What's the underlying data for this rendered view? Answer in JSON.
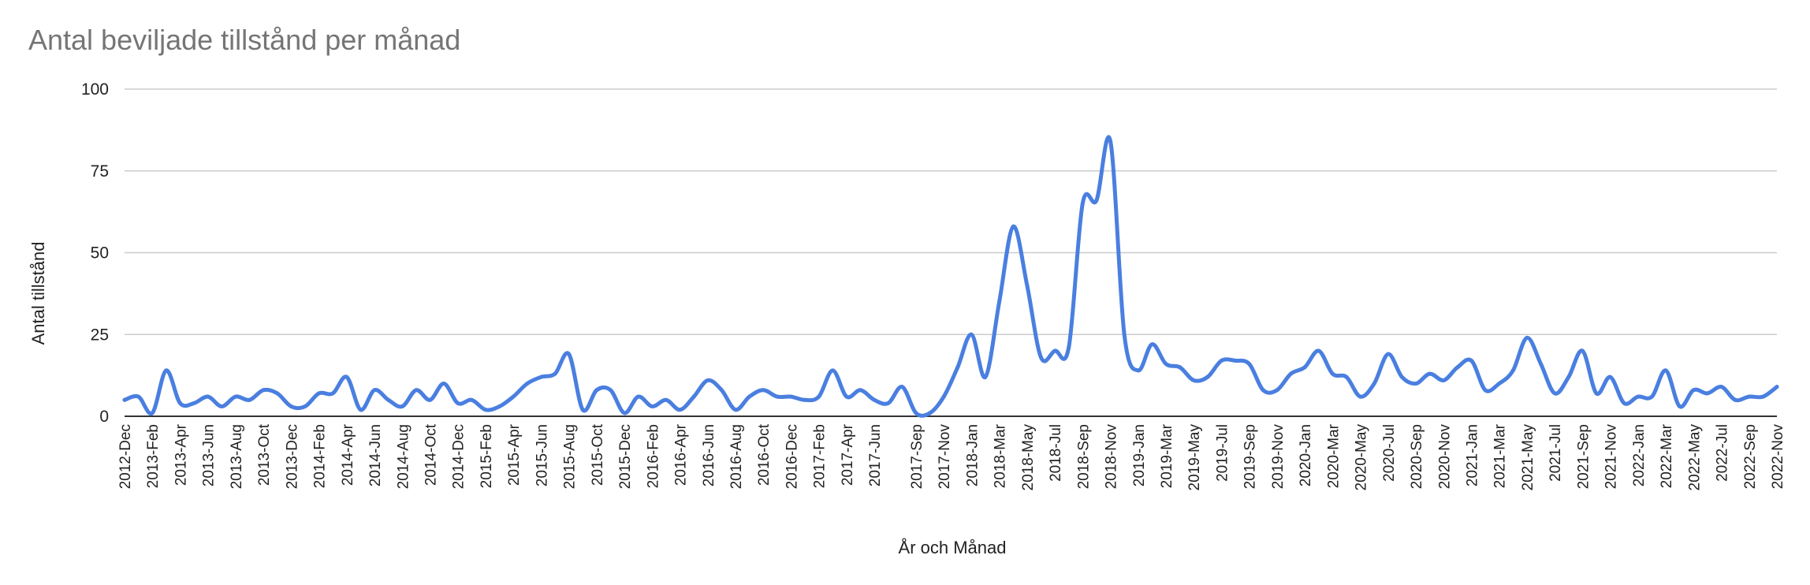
{
  "chart_data": {
    "type": "line",
    "title": "Antal beviljade tillstånd per månad",
    "xlabel": "År och Månad",
    "ylabel": "Antal tillstånd",
    "ylim": [
      0,
      100
    ],
    "yticks": [
      0,
      25,
      50,
      75,
      100
    ],
    "grid": true,
    "legend": "none",
    "x": [
      "2012-Dec",
      "2013-Jan",
      "2013-Feb",
      "2013-Mar",
      "2013-Apr",
      "2013-May",
      "2013-Jun",
      "2013-Jul",
      "2013-Aug",
      "2013-Sep",
      "2013-Oct",
      "2013-Nov",
      "2013-Dec",
      "2014-Jan",
      "2014-Feb",
      "2014-Mar",
      "2014-Apr",
      "2014-May",
      "2014-Jun",
      "2014-Jul",
      "2014-Aug",
      "2014-Sep",
      "2014-Oct",
      "2014-Nov",
      "2014-Dec",
      "2015-Jan",
      "2015-Feb",
      "2015-Mar",
      "2015-Apr",
      "2015-May",
      "2015-Jun",
      "2015-Jul",
      "2015-Aug",
      "2015-Sep",
      "2015-Oct",
      "2015-Nov",
      "2015-Dec",
      "2016-Jan",
      "2016-Feb",
      "2016-Mar",
      "2016-Apr",
      "2016-May",
      "2016-Jun",
      "2016-Jul",
      "2016-Aug",
      "2016-Sep",
      "2016-Oct",
      "2016-Nov",
      "2016-Dec",
      "2017-Jan",
      "2017-Feb",
      "2017-Mar",
      "2017-Apr",
      "2017-May",
      "2017-Jun",
      "2017-Jul",
      "2017-Aug",
      "2017-Sep",
      "2017-Oct",
      "2017-Nov",
      "2017-Dec",
      "2018-Jan",
      "2018-Feb",
      "2018-Mar",
      "2018-Apr",
      "2018-May",
      "2018-Jun",
      "2018-Jul",
      "2018-Aug",
      "2018-Sep",
      "2018-Oct",
      "2018-Nov",
      "2018-Dec",
      "2019-Jan",
      "2019-Feb",
      "2019-Mar",
      "2019-Apr",
      "2019-May",
      "2019-Jun",
      "2019-Jul",
      "2019-Aug",
      "2019-Sep",
      "2019-Oct",
      "2019-Nov",
      "2019-Dec",
      "2020-Jan",
      "2020-Feb",
      "2020-Mar",
      "2020-Apr",
      "2020-May",
      "2020-Jun",
      "2020-Jul",
      "2020-Aug",
      "2020-Sep",
      "2020-Oct",
      "2020-Nov",
      "2020-Dec",
      "2021-Jan",
      "2021-Feb",
      "2021-Mar",
      "2021-Apr",
      "2021-May",
      "2021-Jun",
      "2021-Jul",
      "2021-Aug",
      "2021-Sep",
      "2021-Oct",
      "2021-Nov",
      "2021-Dec",
      "2022-Jan",
      "2022-Feb",
      "2022-Mar",
      "2022-Apr",
      "2022-May",
      "2022-Jun",
      "2022-Jul",
      "2022-Aug",
      "2022-Sep",
      "2022-Oct",
      "2022-Nov"
    ],
    "x_tick_labels": [
      "2012-Dec",
      "2013-Feb",
      "2013-Apr",
      "2013-Jun",
      "2013-Aug",
      "2013-Oct",
      "2013-Dec",
      "2014-Feb",
      "2014-Apr",
      "2014-Jun",
      "2014-Aug",
      "2014-Oct",
      "2014-Dec",
      "2015-Feb",
      "2015-Apr",
      "2015-Jun",
      "2015-Aug",
      "2015-Oct",
      "2015-Dec",
      "2016-Feb",
      "2016-Apr",
      "2016-Jun",
      "2016-Aug",
      "2016-Oct",
      "2016-Dec",
      "2017-Feb",
      "2017-Apr",
      "2017-Jun",
      "2017-Sep",
      "2017-Nov",
      "2018-Jan",
      "2018-Mar",
      "2018-May",
      "2018-Jul",
      "2018-Sep",
      "2018-Nov",
      "2019-Jan",
      "2019-Mar",
      "2019-May",
      "2019-Jul",
      "2019-Sep",
      "2019-Nov",
      "2020-Jan",
      "2020-Mar",
      "2020-May",
      "2020-Jul",
      "2020-Sep",
      "2020-Nov",
      "2021-Jan",
      "2021-Mar",
      "2021-May",
      "2021-Jul",
      "2021-Sep",
      "2021-Nov",
      "2022-Jan",
      "2022-Mar",
      "2022-May",
      "2022-Jul",
      "2022-Sep",
      "2022-Nov"
    ],
    "series": [
      {
        "color": "#4a7fe0",
        "values": [
          5,
          6,
          1,
          14,
          4,
          4,
          6,
          3,
          6,
          5,
          8,
          7,
          3,
          3,
          7,
          7,
          12,
          2,
          8,
          5,
          3,
          8,
          5,
          10,
          4,
          5,
          2,
          3,
          6,
          10,
          12,
          13,
          19,
          2,
          8,
          8,
          1,
          6,
          3,
          5,
          2,
          6,
          11,
          8,
          2,
          6,
          8,
          6,
          6,
          5,
          6,
          14,
          6,
          8,
          5,
          4,
          9,
          1,
          1,
          6,
          15,
          25,
          12,
          35,
          58,
          40,
          18,
          20,
          21,
          65,
          66,
          84,
          25,
          14,
          22,
          16,
          15,
          11,
          12,
          17,
          17,
          16,
          8,
          8,
          13,
          15,
          20,
          13,
          12,
          6,
          10,
          19,
          12,
          10,
          13,
          11,
          15,
          17,
          8,
          10,
          14,
          24,
          16,
          7,
          12,
          20,
          7,
          12,
          4,
          6,
          6,
          14,
          3,
          8,
          7,
          9,
          5,
          6,
          6,
          9
        ]
      }
    ]
  }
}
